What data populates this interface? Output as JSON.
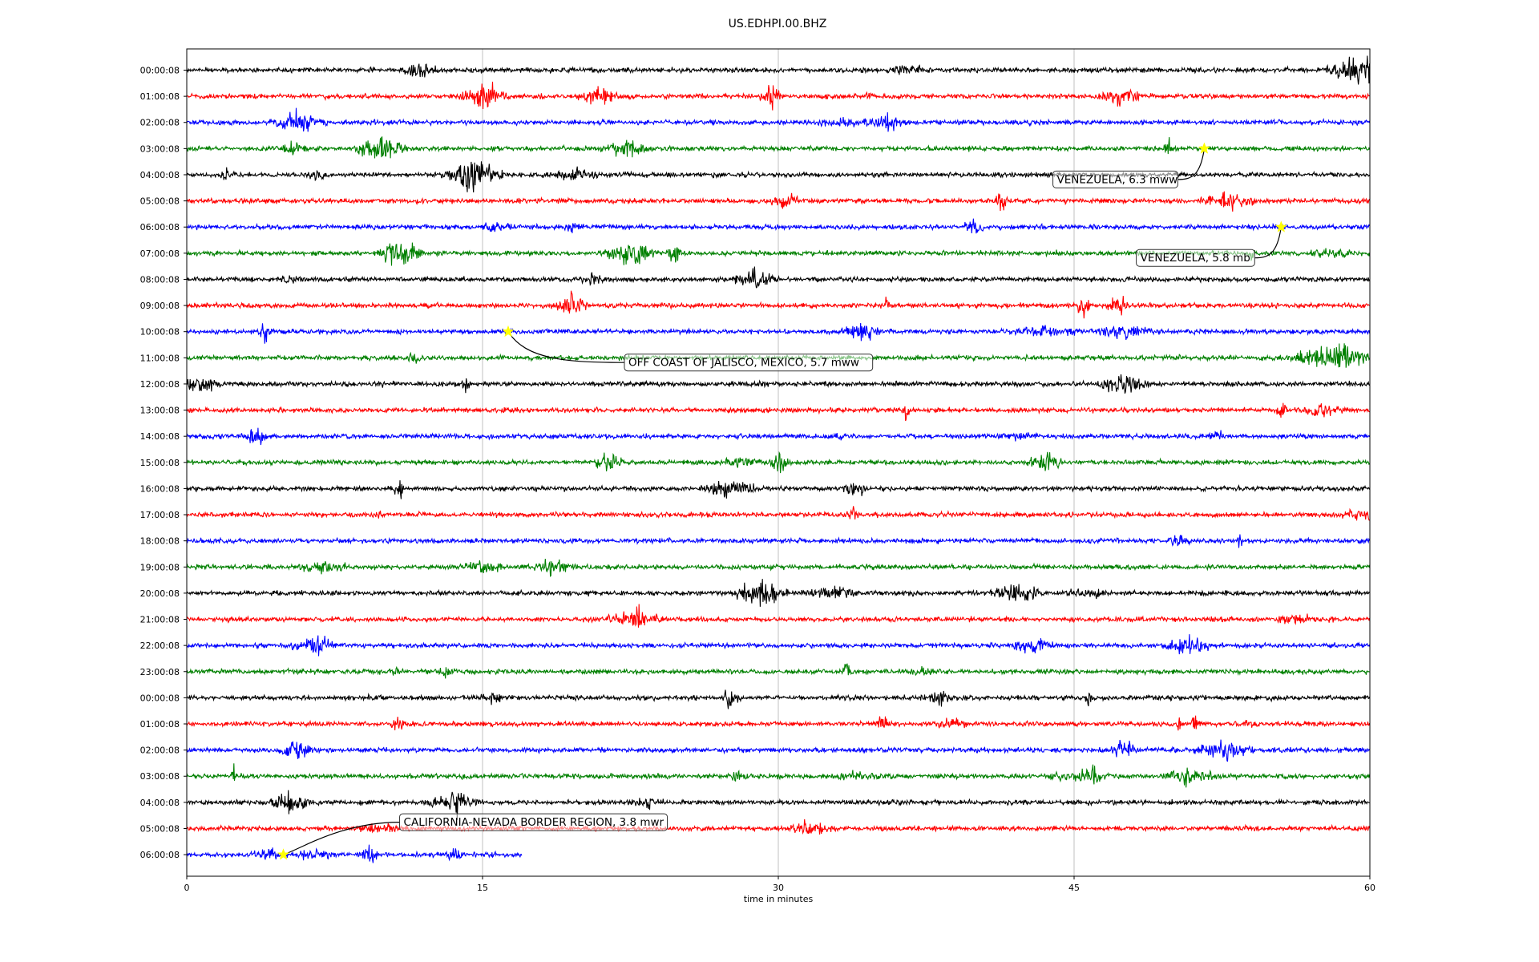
{
  "chart_data": {
    "type": "line",
    "subtype": "dayplot-seismogram",
    "title": "US.EDHPI.00.BHZ",
    "xlabel": "time in minutes",
    "xlim": [
      0,
      60
    ],
    "xticks": [
      0,
      15,
      30,
      45,
      60
    ],
    "grid": "vertical",
    "trace_colors": [
      "#000000",
      "#ff0000",
      "#0000ff",
      "#008000"
    ],
    "marker_color": "#ffff00",
    "rows": [
      "00:00:08",
      "01:00:08",
      "02:00:08",
      "03:00:08",
      "04:00:08",
      "05:00:08",
      "06:00:08",
      "07:00:08",
      "08:00:08",
      "09:00:08",
      "10:00:08",
      "11:00:08",
      "12:00:08",
      "13:00:08",
      "14:00:08",
      "15:00:08",
      "16:00:08",
      "17:00:08",
      "18:00:08",
      "19:00:08",
      "20:00:08",
      "21:00:08",
      "22:00:08",
      "23:00:08",
      "00:00:08",
      "01:00:08",
      "02:00:08",
      "03:00:08",
      "04:00:08",
      "05:00:08",
      "06:00:08"
    ],
    "last_row_end_minute": 17,
    "events": [
      {
        "label": "VENEZUELA, 6.3 mww",
        "row": 3,
        "minute": 51.6
      },
      {
        "label": "VENEZUELA, 5.8 mb",
        "row": 6,
        "minute": 55.5
      },
      {
        "label": "OFF COAST OF JALISCO, MEXICO, 5.7 mww",
        "row": 10,
        "minute": 16.3
      },
      {
        "label": "CALIFORNIA-NEVADA BORDER REGION, 3.8 mwr",
        "row": 30,
        "minute": 4.9
      }
    ]
  }
}
